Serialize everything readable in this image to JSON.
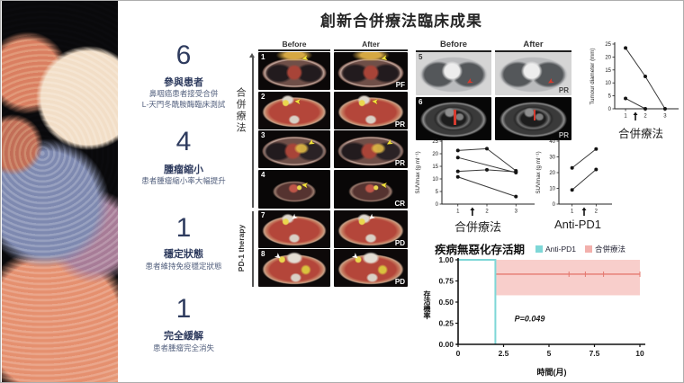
{
  "title": "創新合併療法臨床成果",
  "stats": [
    {
      "value": "6",
      "label": "參與患者",
      "desc": "鼻咽癌患者接受合併\nL-天門冬酰胺酶臨床測試"
    },
    {
      "value": "4",
      "label": "腫瘤縮小",
      "desc": "患者腫瘤縮小率大幅提升"
    },
    {
      "value": "1",
      "label": "穩定狀態",
      "desc": "患者維持免疫穩定狀態"
    },
    {
      "value": "1",
      "label": "完全緩解",
      "desc": "患者腫瘤完全消失"
    }
  ],
  "scan_panel": {
    "header_before": "Before",
    "header_after": "After",
    "group1_label": "合併療法",
    "group2_label": "PD-1 therapy",
    "rows": [
      {
        "num": "1",
        "result": "PF"
      },
      {
        "num": "2",
        "result": "PR"
      },
      {
        "num": "3",
        "result": "PR"
      },
      {
        "num": "4",
        "result": "CR"
      },
      {
        "num": "7",
        "result": "PD"
      },
      {
        "num": "8",
        "result": "PD"
      }
    ]
  },
  "ct_panel": {
    "header_before": "Before",
    "header_after": "After",
    "rows": [
      {
        "num": "5",
        "result": "PR"
      },
      {
        "num": "6",
        "result": "PR"
      }
    ]
  },
  "colors": {
    "accent_navy": "#2e3b5e",
    "anti_pd1_cyan": "#7ed7d7",
    "combo_pink": "#f2b0ac",
    "combo_line": "#e4786f",
    "ci_band": "#f7c6c2"
  },
  "chart_data": [
    {
      "id": "tumour",
      "type": "line",
      "title": "",
      "xlabel": "合併療法",
      "ylabel": "Tumour diameter (mm)",
      "ylim": [
        0,
        25
      ],
      "yticks": [
        0,
        5,
        10,
        15,
        20,
        25
      ],
      "xticks": [
        1,
        2,
        3
      ],
      "arrow_x": 1.5,
      "grid": false,
      "series": [
        {
          "name": "patient-a",
          "x": [
            1,
            2,
            3
          ],
          "y": [
            23.5,
            12.5,
            0
          ]
        },
        {
          "name": "patient-b",
          "x": [
            1,
            2
          ],
          "y": [
            4,
            0
          ]
        }
      ]
    },
    {
      "id": "suv1",
      "type": "line",
      "title": "",
      "xlabel": "合併療法",
      "ylabel": "SUVmax (g ml⁻¹)",
      "ylim": [
        0,
        25
      ],
      "yticks": [
        0,
        5,
        10,
        15,
        20,
        25
      ],
      "xticks": [
        1,
        2,
        3
      ],
      "arrow_x": 1.5,
      "grid": false,
      "series": [
        {
          "name": "p1",
          "x": [
            1,
            2,
            3
          ],
          "y": [
            21.3,
            22,
            13.2
          ]
        },
        {
          "name": "p2",
          "x": [
            1,
            3
          ],
          "y": [
            18.5,
            12.5
          ]
        },
        {
          "name": "p3",
          "x": [
            1,
            2,
            3
          ],
          "y": [
            13,
            13.6,
            12.8
          ]
        },
        {
          "name": "p4",
          "x": [
            1,
            3
          ],
          "y": [
            10.8,
            3
          ]
        }
      ]
    },
    {
      "id": "suv2",
      "type": "line",
      "title": "",
      "xlabel": "Anti-PD1",
      "ylabel": "SUVmax (g ml⁻¹)",
      "ylim": [
        0,
        40
      ],
      "yticks": [
        0,
        10,
        20,
        30,
        40
      ],
      "xticks": [
        1,
        2
      ],
      "arrow_x": 1.5,
      "grid": false,
      "series": [
        {
          "name": "p5",
          "x": [
            1,
            2
          ],
          "y": [
            23,
            35
          ]
        },
        {
          "name": "p6",
          "x": [
            1,
            2
          ],
          "y": [
            9,
            22
          ]
        }
      ]
    },
    {
      "id": "km",
      "type": "km",
      "title": "疾病無惡化存活期",
      "xlabel": "時間(月)",
      "ylabel": "存活機率",
      "ylim": [
        0,
        1
      ],
      "yticks": [
        "1.00",
        "0.75",
        "0.50",
        "0.25",
        "0.00"
      ],
      "xticks": [
        "0",
        "2.5",
        "5",
        "7.5",
        "10"
      ],
      "xlim": [
        0,
        10
      ],
      "p_value": "P=0.049",
      "legend": [
        {
          "label": "Anti-PD1",
          "color": "#7ed7d7"
        },
        {
          "label": "合併療法",
          "color": "#f2b0ac"
        }
      ],
      "anti_pd1": {
        "level": 1.0,
        "drop_x": 2.05
      },
      "combo": {
        "level": 0.83,
        "start_x": 2.05,
        "end_x": 10,
        "ci": [
          0.58,
          1.0
        ],
        "censors": [
          6.1,
          7.0,
          8.0,
          10
        ]
      }
    }
  ]
}
